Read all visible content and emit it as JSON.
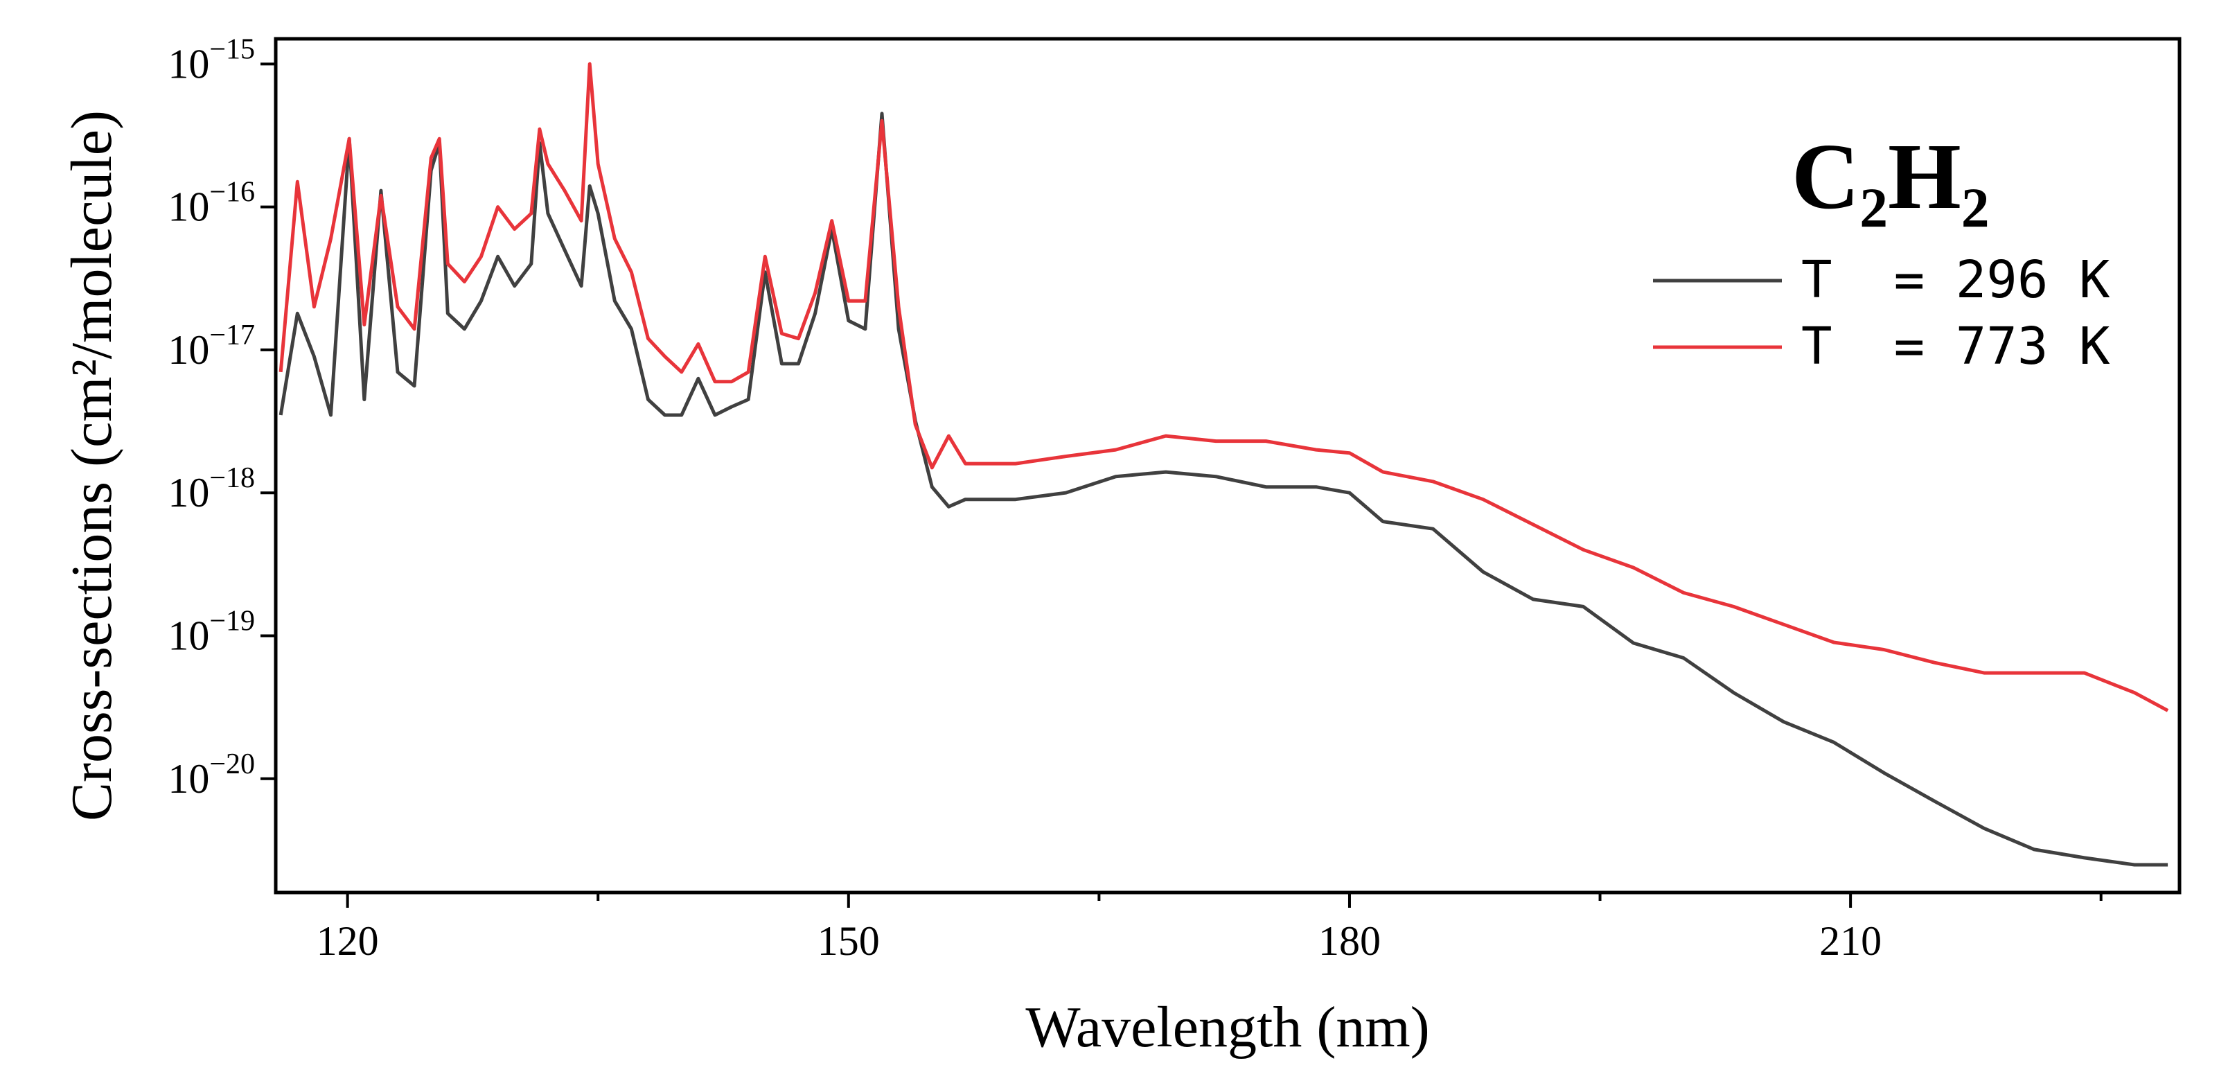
{
  "chart_data": {
    "type": "line",
    "annotation": "C₂H₂",
    "xlabel": "Wavelength (nm)",
    "ylabel": "Cross-sections (cm²/molecule)",
    "x": [
      116,
      117,
      118,
      119,
      120.1,
      121,
      122,
      123,
      124,
      125,
      125.5,
      126,
      127,
      128,
      129,
      130,
      131,
      131.5,
      132,
      133,
      134,
      134.5,
      135,
      136,
      137,
      138,
      139,
      140,
      141,
      142,
      143,
      144,
      145,
      146,
      147,
      148,
      149,
      150,
      151,
      152,
      153,
      154,
      155,
      156,
      157,
      160,
      163,
      166,
      169,
      172,
      175,
      178,
      180,
      182,
      185,
      188,
      191,
      194,
      197,
      200,
      203,
      206,
      209,
      212,
      215,
      218,
      221,
      224,
      227,
      229
    ],
    "series": [
      {
        "name": "T  = 296 K",
        "color": "#404040",
        "values": [
          3.5e-18,
          1.8e-17,
          9e-18,
          3.5e-18,
          3e-16,
          4.5e-18,
          1.3e-16,
          7e-18,
          5.6e-18,
          1.8e-16,
          2.8e-16,
          1.8e-17,
          1.4e-17,
          2.2e-17,
          4.5e-17,
          2.8e-17,
          4e-17,
          2.8e-16,
          9e-17,
          5e-17,
          2.8e-17,
          1.4e-16,
          9e-17,
          2.2e-17,
          1.4e-17,
          4.5e-18,
          3.5e-18,
          3.5e-18,
          6.3e-18,
          3.5e-18,
          4e-18,
          4.5e-18,
          3.5e-17,
          8e-18,
          8e-18,
          1.8e-17,
          7e-17,
          1.6e-17,
          1.4e-17,
          4.5e-16,
          1.4e-17,
          3.2e-18,
          1.1e-18,
          8e-19,
          9e-19,
          9e-19,
          1e-18,
          1.3e-18,
          1.4e-18,
          1.3e-18,
          1.1e-18,
          1.1e-18,
          1e-18,
          6.3e-19,
          5.6e-19,
          2.8e-19,
          1.8e-19,
          1.6e-19,
          8.9e-20,
          7e-20,
          4e-20,
          2.5e-20,
          1.8e-20,
          1.1e-20,
          7e-21,
          4.5e-21,
          3.2e-21,
          2.8e-21,
          2.5e-21,
          2.5e-21
        ]
      },
      {
        "name": "T  = 773 K",
        "color": "#e8343a",
        "values": [
          7e-18,
          1.5e-16,
          2e-17,
          6e-17,
          3e-16,
          1.5e-17,
          1.2e-16,
          2e-17,
          1.4e-17,
          2.2e-16,
          3e-16,
          4e-17,
          3e-17,
          4.5e-17,
          1e-16,
          7e-17,
          9e-17,
          3.5e-16,
          2e-16,
          1.3e-16,
          8e-17,
          1e-15,
          2e-16,
          6e-17,
          3.5e-17,
          1.2e-17,
          9e-18,
          7e-18,
          1.1e-17,
          6e-18,
          6e-18,
          7e-18,
          4.5e-17,
          1.3e-17,
          1.2e-17,
          2.5e-17,
          8e-17,
          2.2e-17,
          2.2e-17,
          4e-16,
          2e-17,
          3e-18,
          1.5e-18,
          2.5e-18,
          1.6e-18,
          1.6e-18,
          1.8e-18,
          2e-18,
          2.5e-18,
          2.3e-18,
          2.3e-18,
          2e-18,
          1.9e-18,
          1.4e-18,
          1.2e-18,
          9e-19,
          6e-19,
          4e-19,
          3e-19,
          2e-19,
          1.6e-19,
          1.2e-19,
          9e-20,
          8e-20,
          6.5e-20,
          5.5e-20,
          5.5e-20,
          5.5e-20,
          4e-20,
          3e-20
        ]
      }
    ],
    "xlim": [
      115.7,
      229.7
    ],
    "xticks": [
      120,
      150,
      180,
      210
    ],
    "xminor_ticks": [
      135,
      165,
      195,
      225
    ],
    "ylim": [
      1.6e-21,
      1.5e-15
    ],
    "ylog": true,
    "yticks": [
      {
        "value": 1e-20,
        "label": "10",
        "exponent": "−20"
      },
      {
        "value": 1e-19,
        "label": "10",
        "exponent": "−19"
      },
      {
        "value": 1e-18,
        "label": "10",
        "exponent": "−18"
      },
      {
        "value": 1e-17,
        "label": "10",
        "exponent": "−17"
      },
      {
        "value": 1e-16,
        "label": "10",
        "exponent": "−16"
      },
      {
        "value": 1e-15,
        "label": "10",
        "exponent": "−15"
      }
    ],
    "legend": "upper right",
    "grid": false
  }
}
